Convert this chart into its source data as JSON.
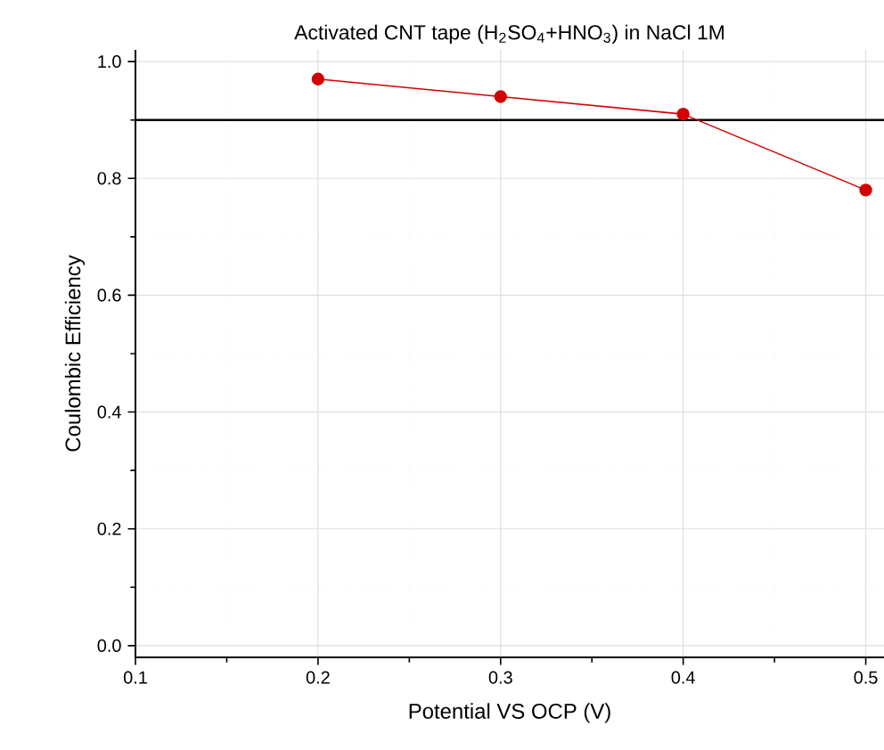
{
  "chart_data": {
    "type": "line",
    "title": "Activated CNT tape (H$_{2}$SO$_{4}$+HNO$_{3}$) in NaCl 1M",
    "xlabel": "Potential VS OCP (V)",
    "ylabel": "Coulombic Efficiency",
    "x": [
      0.2,
      0.3,
      0.4,
      0.5
    ],
    "series": [
      {
        "color": "#d40000",
        "values": [
          0.97,
          0.94,
          0.91,
          0.78
        ]
      }
    ],
    "xlim": [
      0.1,
      0.51
    ],
    "ylim": [
      -0.02,
      1.02
    ],
    "xticks": [
      0.1,
      0.2,
      0.3,
      0.4,
      0.5
    ],
    "yticks": [
      {
        "value": 0,
        "label": "0.0"
      },
      {
        "value": 0.2,
        "label": "0.2"
      },
      {
        "value": 0.4,
        "label": "0.4"
      },
      {
        "value": 0.6,
        "label": "0.6"
      },
      {
        "value": 0.8,
        "label": "0.8"
      },
      {
        "value": 1,
        "label": "1.0"
      }
    ],
    "ref_lines": [
      {
        "axis": "y",
        "value": 0.9,
        "color": "#000000",
        "line_style": "solid"
      }
    ],
    "grid": true,
    "marker": "circle",
    "line_style": "solid"
  }
}
